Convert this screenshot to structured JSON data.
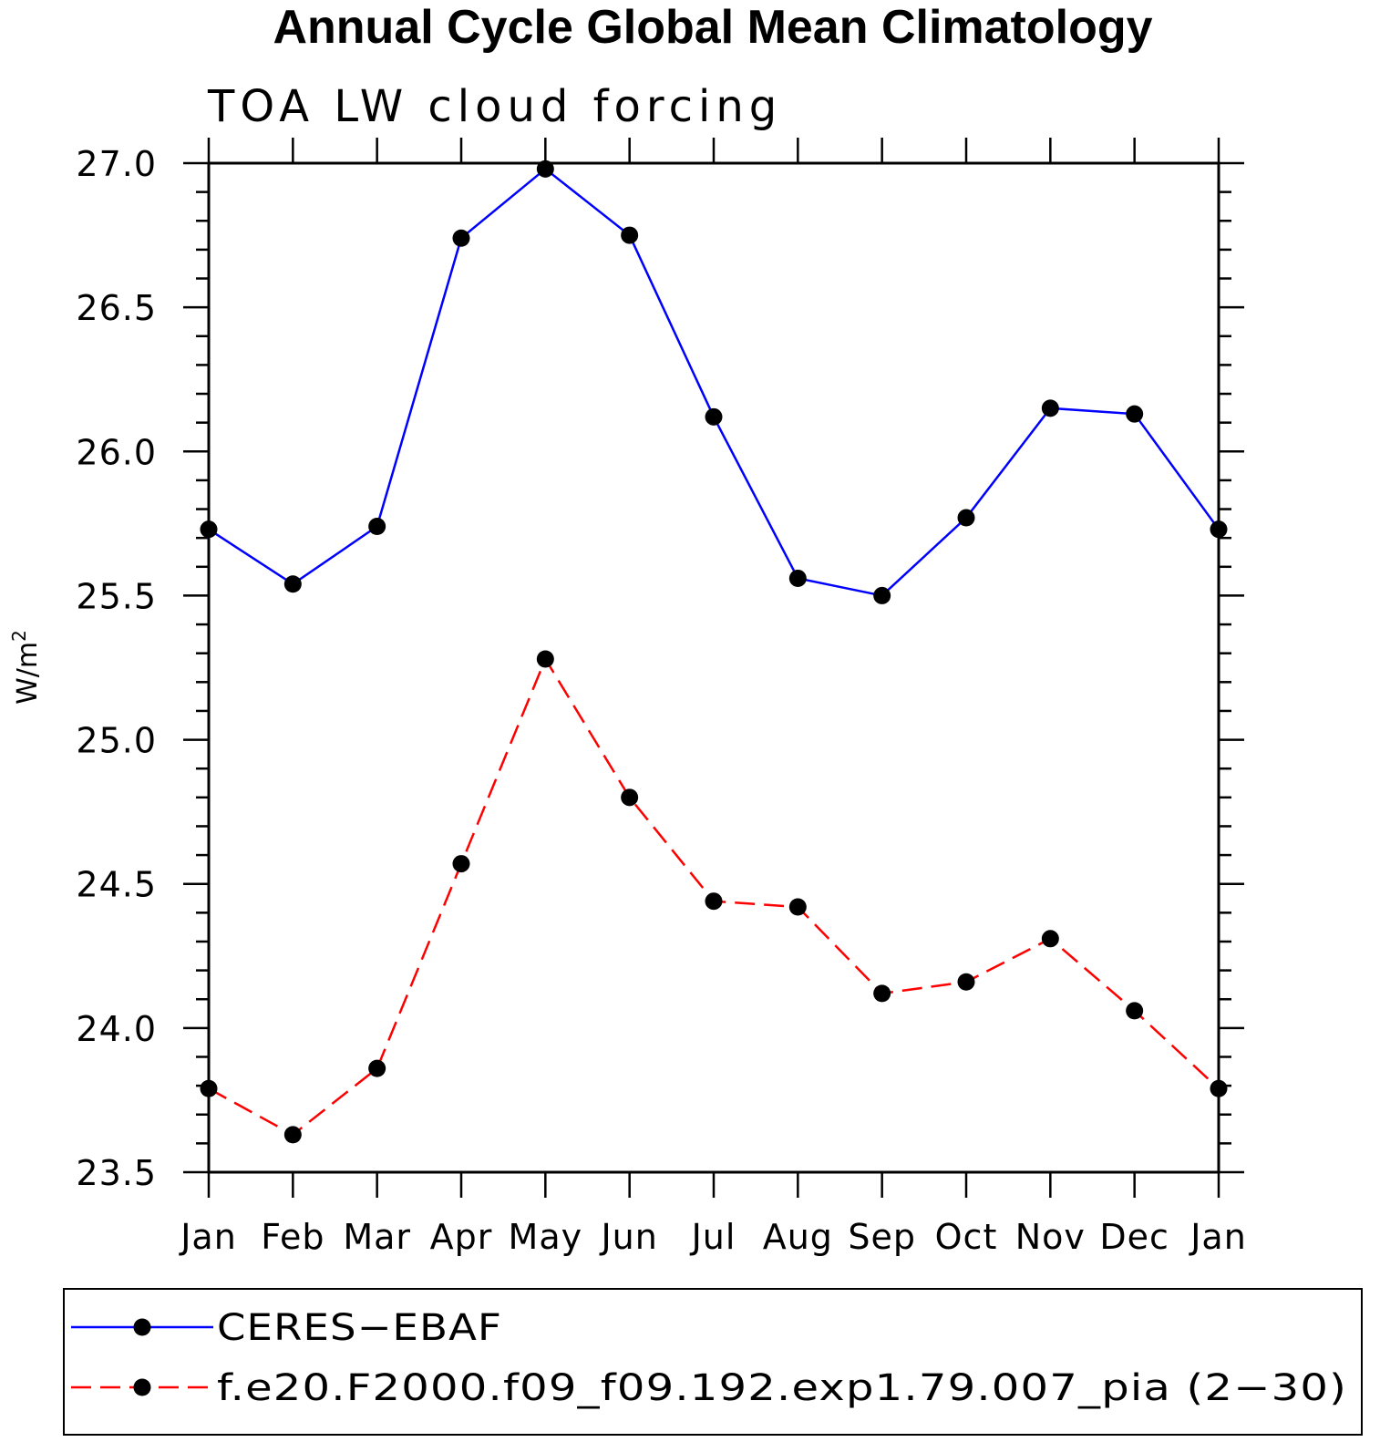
{
  "chart_data": {
    "type": "line",
    "title": "Annual Cycle Global Mean Climatology",
    "subtitle": "TOA LW cloud forcing",
    "ylabel_base": "W/m",
    "ylabel_sup": "2",
    "xlabel": "",
    "categories": [
      "Jan",
      "Feb",
      "Mar",
      "Apr",
      "May",
      "Jun",
      "Jul",
      "Aug",
      "Sep",
      "Oct",
      "Nov",
      "Dec",
      "Jan"
    ],
    "ylim": [
      23.5,
      27.0
    ],
    "yticks": [
      "23.5",
      "24.0",
      "24.5",
      "25.0",
      "25.5",
      "26.0",
      "26.5",
      "27.0"
    ],
    "legend_position": "bottom",
    "series": [
      {
        "name": "CERES−EBAF",
        "color": "#0000ff",
        "line_style": "solid",
        "marker": "filled-circle",
        "values": [
          25.73,
          25.54,
          25.74,
          26.74,
          26.98,
          26.75,
          26.12,
          25.56,
          25.5,
          25.77,
          26.15,
          26.13,
          25.73
        ]
      },
      {
        "name": "f.e20.F2000.f09_f09.192.exp1.79.007_pia (2−30)",
        "color": "#ff0000",
        "line_style": "dashed",
        "marker": "filled-circle",
        "values": [
          23.79,
          23.63,
          23.86,
          24.57,
          25.28,
          24.8,
          24.44,
          24.42,
          24.12,
          24.16,
          24.31,
          24.06,
          23.79
        ]
      }
    ]
  }
}
